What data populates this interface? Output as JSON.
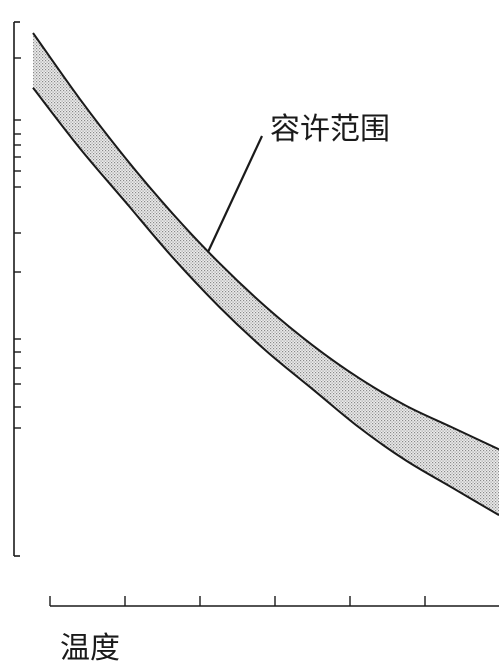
{
  "chart_data": {
    "type": "area",
    "title": "",
    "xlabel": "温度",
    "ylabel": "",
    "x_ticks_count": 6,
    "y_ticks_count": 15,
    "grid": false,
    "annotation": "容许范围",
    "series": [
      {
        "role": "upper-bound",
        "x": [
          0.0,
          0.1,
          0.2,
          0.3,
          0.4,
          0.5,
          0.6,
          0.7,
          0.8,
          0.9,
          1.0
        ],
        "values": [
          0.98,
          0.86,
          0.75,
          0.65,
          0.56,
          0.48,
          0.41,
          0.35,
          0.3,
          0.26,
          0.22
        ]
      },
      {
        "role": "lower-bound",
        "x": [
          0.0,
          0.1,
          0.2,
          0.3,
          0.4,
          0.5,
          0.6,
          0.7,
          0.8,
          0.9,
          1.0
        ],
        "values": [
          0.88,
          0.77,
          0.67,
          0.57,
          0.48,
          0.4,
          0.33,
          0.26,
          0.2,
          0.15,
          0.1
        ]
      }
    ],
    "colors": {
      "line": "#1a1a1a",
      "band_fill": "#c8c8c8"
    }
  }
}
